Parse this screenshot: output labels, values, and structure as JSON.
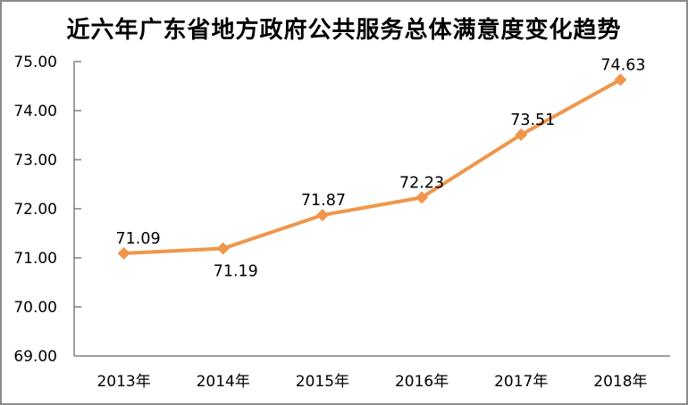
{
  "chart_data": {
    "type": "line",
    "title": "近六年广东省地方政府公共服务总体满意度变化趋势",
    "categories": [
      "2013年",
      "2014年",
      "2015年",
      "2016年",
      "2017年",
      "2018年"
    ],
    "values": [
      71.09,
      71.19,
      71.87,
      72.23,
      73.51,
      74.63
    ],
    "data_labels": [
      "71.09",
      "71.19",
      "71.87",
      "72.23",
      "73.51",
      "74.63"
    ],
    "data_label_positions": [
      "above",
      "below",
      "above",
      "above",
      "above",
      "above"
    ],
    "xlabel": "",
    "ylabel": "",
    "ylim": [
      69,
      75
    ],
    "ytick_step": 1,
    "ytick_labels": [
      "69.00",
      "70.00",
      "71.00",
      "72.00",
      "73.00",
      "74.00",
      "75.00"
    ],
    "grid": false,
    "legend": false,
    "marker": "diamond",
    "colors": {
      "line": "#F0964B",
      "marker": "#F0964B",
      "axis": "#7F7F7F",
      "text": "#000000",
      "frame_border": "#8C8C8C"
    }
  }
}
